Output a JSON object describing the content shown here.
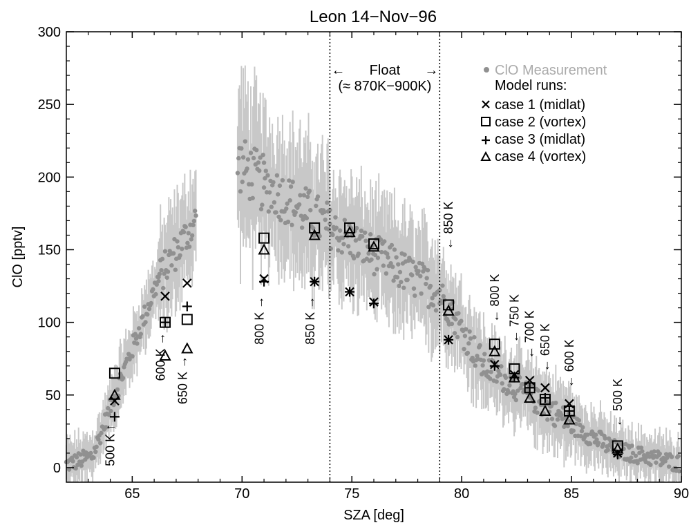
{
  "chart_data": {
    "type": "scatter",
    "title": "Leon 14−Nov−96",
    "xlabel": "SZA [deg]",
    "ylabel": "ClO [pptv]",
    "xlim": [
      62,
      90
    ],
    "ylim": [
      -10,
      300
    ],
    "xticks": [
      "65",
      "70",
      "75",
      "80",
      "85",
      "90"
    ],
    "xtick_values": [
      65,
      70,
      75,
      80,
      85,
      90
    ],
    "yticks": [
      "0",
      "50",
      "100",
      "150",
      "200",
      "250",
      "300"
    ],
    "ytick_values": [
      0,
      50,
      100,
      150,
      200,
      250,
      300
    ],
    "grid": false,
    "legend_position": "top-right",
    "legend": {
      "measurement": "ClO Measurement",
      "model_header": "Model runs:",
      "case1": "case 1 (midlat)",
      "case2": "case 2 (vortex)",
      "case3": "case 3 (midlat)",
      "case4": "case 4 (vortex)"
    },
    "float_bounds": [
      74,
      79
    ],
    "float_label": "Float",
    "float_range_label": "(≈ 870K−900K)",
    "measurement_segments": [
      {
        "start": 62.0,
        "end": 63.2,
        "y0": 2,
        "y1": 8,
        "err": 12
      },
      {
        "start": 63.2,
        "end": 64.2,
        "y0": 8,
        "y1": 50,
        "err": 12
      },
      {
        "start": 64.2,
        "end": 66.2,
        "y0": 50,
        "y1": 130,
        "err": 15
      },
      {
        "start": 66.2,
        "end": 67.9,
        "y0": 130,
        "y1": 170,
        "err": 25
      },
      {
        "start": 69.8,
        "end": 71.0,
        "y0": 210,
        "y1": 195,
        "err": 40
      },
      {
        "start": 71.0,
        "end": 74.0,
        "y0": 195,
        "y1": 165,
        "err": 35
      },
      {
        "start": 74.0,
        "end": 79.0,
        "y0": 165,
        "y1": 120,
        "err": 28
      },
      {
        "start": 79.0,
        "end": 81.0,
        "y0": 120,
        "y1": 70,
        "err": 22
      },
      {
        "start": 81.0,
        "end": 85.0,
        "y0": 70,
        "y1": 30,
        "err": 18
      },
      {
        "start": 85.0,
        "end": 87.0,
        "y0": 30,
        "y1": 12,
        "err": 14
      },
      {
        "start": 87.0,
        "end": 89.9,
        "y0": 12,
        "y1": 3,
        "err": 12
      }
    ],
    "model_points": {
      "case1": [
        [
          64.2,
          46
        ],
        [
          66.5,
          118
        ],
        [
          67.5,
          127
        ],
        [
          71.0,
          130
        ],
        [
          73.3,
          128
        ],
        [
          74.9,
          121
        ],
        [
          76.0,
          114
        ],
        [
          79.4,
          88
        ],
        [
          81.5,
          71
        ],
        [
          82.4,
          64
        ],
        [
          83.1,
          60
        ],
        [
          83.8,
          55
        ],
        [
          84.9,
          44
        ],
        [
          87.1,
          10
        ]
      ],
      "case2": [
        [
          64.2,
          65
        ],
        [
          66.5,
          100
        ],
        [
          67.5,
          102
        ],
        [
          71.0,
          158
        ],
        [
          73.3,
          165
        ],
        [
          74.9,
          165
        ],
        [
          76.0,
          154
        ],
        [
          79.4,
          112
        ],
        [
          81.5,
          85
        ],
        [
          82.4,
          68
        ],
        [
          83.1,
          55
        ],
        [
          83.8,
          47
        ],
        [
          84.9,
          39
        ],
        [
          87.1,
          15
        ]
      ],
      "case3": [
        [
          64.2,
          35
        ],
        [
          66.5,
          100
        ],
        [
          67.5,
          111
        ],
        [
          71.0,
          128
        ],
        [
          73.3,
          128
        ],
        [
          74.9,
          121
        ],
        [
          76.0,
          113
        ],
        [
          79.4,
          88
        ],
        [
          81.5,
          70
        ],
        [
          82.4,
          62
        ],
        [
          83.1,
          55
        ],
        [
          83.8,
          48
        ],
        [
          84.9,
          39
        ],
        [
          87.1,
          9
        ]
      ],
      "case4": [
        [
          64.2,
          50
        ],
        [
          66.5,
          77
        ],
        [
          67.5,
          82
        ],
        [
          71.0,
          150
        ],
        [
          73.3,
          160
        ],
        [
          74.9,
          162
        ],
        [
          76.0,
          152
        ],
        [
          79.4,
          108
        ],
        [
          81.5,
          80
        ],
        [
          82.4,
          62
        ],
        [
          83.1,
          48
        ],
        [
          83.8,
          39
        ],
        [
          84.9,
          33
        ],
        [
          87.1,
          13
        ]
      ]
    },
    "annotations": [
      {
        "text": "500 K",
        "x": 64.0,
        "y": 30,
        "orient": "below",
        "arrow": "↑"
      },
      {
        "text": "600 K",
        "x": 66.3,
        "y": 93,
        "orient": "below",
        "arrow": "→"
      },
      {
        "text": "650 K",
        "x": 67.3,
        "y": 77,
        "orient": "below",
        "arrow": "→"
      },
      {
        "text": "800 K",
        "x": 70.8,
        "y": 118,
        "orient": "below",
        "arrow": "→"
      },
      {
        "text": "850 K",
        "x": 73.1,
        "y": 118,
        "orient": "below",
        "arrow": "→"
      },
      {
        "text": "850 K",
        "x": 79.4,
        "y": 150,
        "orient": "above",
        "arrow": "←"
      },
      {
        "text": "800 K",
        "x": 81.5,
        "y": 100,
        "orient": "above",
        "arrow": "←"
      },
      {
        "text": "750 K",
        "x": 82.4,
        "y": 86,
        "orient": "above",
        "arrow": "←"
      },
      {
        "text": "700 K",
        "x": 83.1,
        "y": 75,
        "orient": "above",
        "arrow": "←"
      },
      {
        "text": "650 K",
        "x": 83.8,
        "y": 66,
        "orient": "above",
        "arrow": "←"
      },
      {
        "text": "600 K",
        "x": 84.9,
        "y": 55,
        "orient": "above",
        "arrow": "←"
      },
      {
        "text": "500 K",
        "x": 87.1,
        "y": 28,
        "orient": "above",
        "arrow": "←"
      }
    ],
    "colors": {
      "measurement": "#909090",
      "errorbar": "#c8c8c8",
      "model": "#000000"
    }
  }
}
